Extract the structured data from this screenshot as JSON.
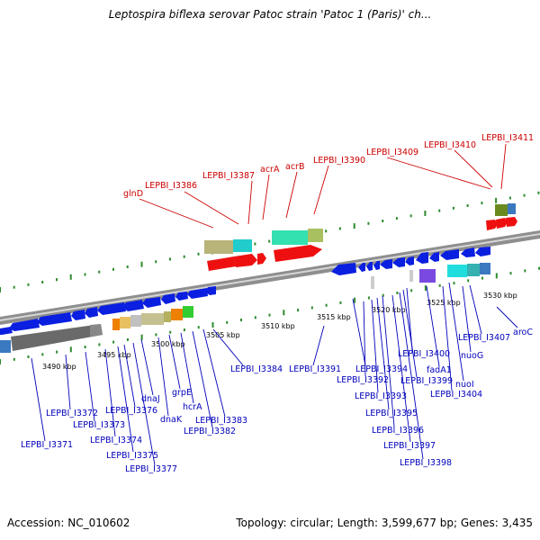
{
  "title": "Leptospira biflexa serovar Patoc strain 'Patoc 1 (Paris)' ch...",
  "footer": {
    "accession": "Accession: NC_010602",
    "summary": "Topology: circular; Length: 3,599,677 bp; Genes: 3,435"
  },
  "colors": {
    "backbone": "#8a8a8a",
    "tick": "#2e8b2e",
    "plus_label": "#cc0000",
    "minus_label": "#0000bb",
    "plus_gene": "#ee0000",
    "minus_gene": "#0a1fe0"
  },
  "scale_labels": [
    "3490 kbp",
    "3495 kbp",
    "3500 kbp",
    "3505 kbp",
    "3510 kbp",
    "3515 kbp",
    "3520 kbp",
    "3525 kbp",
    "3530 kbp"
  ],
  "plus_strand_genes": [
    "glnD",
    "LEPBI_I3386",
    "LEPBI_I3387",
    "acrA",
    "acrB",
    "LEPBI_I3390",
    "LEPBI_I3409",
    "LEPBI_I3410",
    "LEPBI_I3411"
  ],
  "minus_strand_genes": [
    "LEPBI_I3371",
    "LEPBI_I3372",
    "LEPBI_I3373",
    "LEPBI_I3374",
    "LEPBI_I3375",
    "LEPBI_I3376",
    "LEPBI_I3377",
    "dnaJ",
    "dnaK",
    "grpE",
    "hcrA",
    "LEPBI_I3382",
    "LEPBI_I3383",
    "LEPBI_I3384",
    "LEPBI_I3391",
    "LEPBI_I3392",
    "LEPBI_I3393",
    "LEPBI_I3394",
    "LEPBI_I3395",
    "LEPBI_I3396",
    "LEPBI_I3397",
    "LEPBI_I3398",
    "LEPBI_I3399",
    "LEPBI_I3400",
    "fadA1",
    "LEPBI_I3404",
    "nuoI",
    "nuoG",
    "LEPBI_I3407",
    "aroC"
  ]
}
